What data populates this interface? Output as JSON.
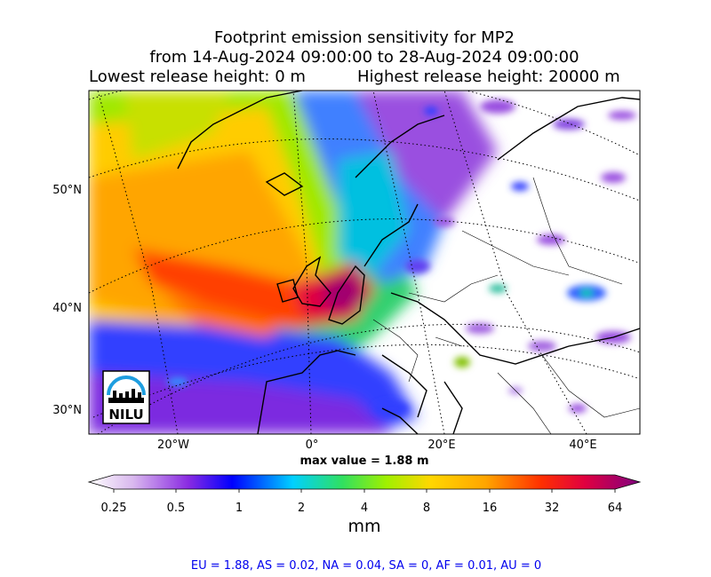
{
  "title": {
    "line1": "Footprint emission sensitivity for MP2",
    "line2": "from 14-Aug-2024 09:00:00 to 28-Aug-2024 09:00:00",
    "lowest": "Lowest release height: 0 m",
    "highest": "Highest release height: 20000 m"
  },
  "axes": {
    "lat_labels": [
      "50°N",
      "40°N",
      "30°N"
    ],
    "lon_labels": [
      "20°W",
      "0°",
      "20°E",
      "40°E"
    ]
  },
  "max_value": "max value = 1.88 m",
  "logo": {
    "text": "NILU"
  },
  "colorbar": {
    "ticks": [
      "0.25",
      "0.5",
      "1",
      "2",
      "4",
      "8",
      "16",
      "32",
      "64"
    ],
    "unit": "mm",
    "colors": [
      "#ffffff",
      "#c89be6",
      "#8a2be2",
      "#0000ff",
      "#00ffff",
      "#7cfc00",
      "#ffd700",
      "#ffa500",
      "#ff0000",
      "#b00060",
      "#800080"
    ]
  },
  "summary": "EU = 1.88,  AS = 0.02,  NA = 0.04,  SA = 0,  AF = 0.01,  AU = 0"
}
